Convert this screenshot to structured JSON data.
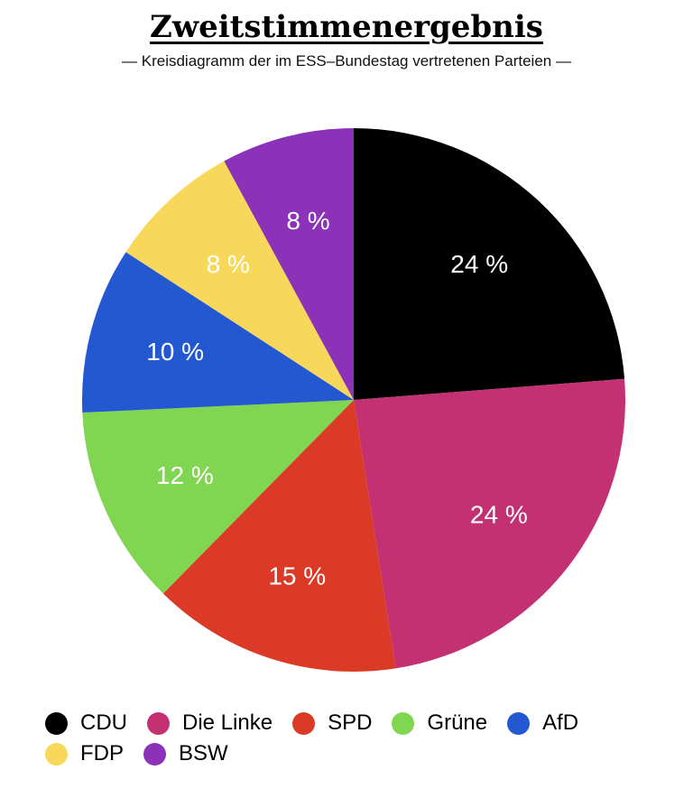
{
  "chart_data": {
    "type": "pie",
    "title": "Zweitstimmenergebnis",
    "subtitle": "— Kreisdiagramm der im ESS–Bundestag vertretenen Parteien —",
    "categories": [
      "CDU",
      "Die Linke",
      "SPD",
      "Grüne",
      "AfD",
      "FDP",
      "BSW"
    ],
    "values": [
      24,
      24,
      15,
      12,
      10,
      8,
      8
    ],
    "value_labels": [
      "24 %",
      "24 %",
      "15 %",
      "12 %",
      "10 %",
      "8 %",
      "8 %"
    ],
    "colors": [
      "#000000",
      "#c43172",
      "#db3a26",
      "#80d551",
      "#2458d1",
      "#f8d85a",
      "#8b32b8"
    ],
    "start_angle": "12 o'clock",
    "direction": "clockwise",
    "legend_placement": "bottom"
  },
  "legend": {
    "rows": [
      [
        {
          "label": "CDU",
          "color": "#000000"
        },
        {
          "label": "Die Linke",
          "color": "#c43172"
        },
        {
          "label": "SPD",
          "color": "#db3a26"
        },
        {
          "label": "Grüne",
          "color": "#80d551"
        },
        {
          "label": "AfD",
          "color": "#2458d1"
        }
      ],
      [
        {
          "label": "FDP",
          "color": "#f8d85a"
        },
        {
          "label": "BSW",
          "color": "#8b32b8"
        }
      ]
    ]
  }
}
